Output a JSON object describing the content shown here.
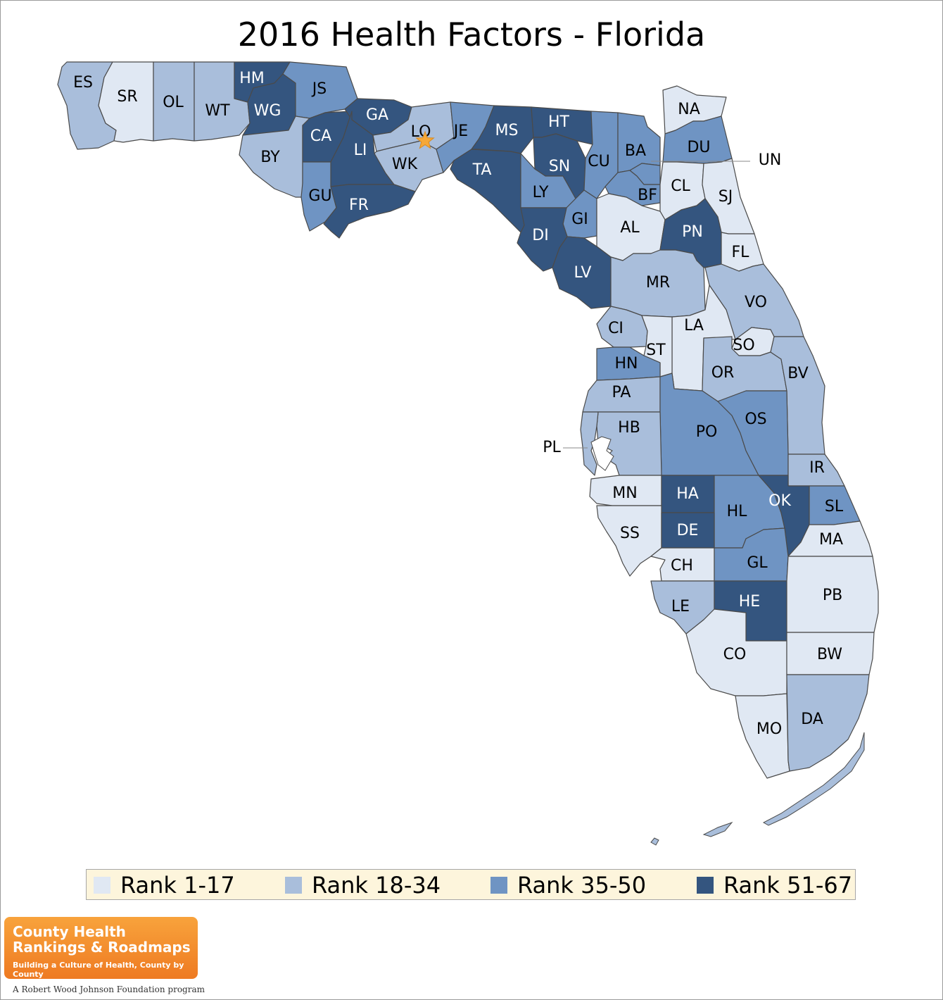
{
  "title": "2016 Health Factors - Florida",
  "colors": {
    "rank_1_17": "#e0e8f3",
    "rank_18_34": "#a9bedb",
    "rank_35_50": "#6f94c3",
    "rank_51_67": "#34557f",
    "outline": "#4a4a4a",
    "legend_bg": "#fdf5dc",
    "star": "#f6a838"
  },
  "legend": [
    {
      "label": "Rank 1-17",
      "tier": 1
    },
    {
      "label": "Rank 18-34",
      "tier": 2
    },
    {
      "label": "Rank 35-50",
      "tier": 3
    },
    {
      "label": "Rank 51-67",
      "tier": 4
    }
  ],
  "counties": [
    {
      "code": "ES",
      "tier": 2
    },
    {
      "code": "SR",
      "tier": 1
    },
    {
      "code": "OL",
      "tier": 2
    },
    {
      "code": "WT",
      "tier": 2
    },
    {
      "code": "HM",
      "tier": 4
    },
    {
      "code": "WG",
      "tier": 4
    },
    {
      "code": "JS",
      "tier": 3
    },
    {
      "code": "BY",
      "tier": 2
    },
    {
      "code": "CA",
      "tier": 4
    },
    {
      "code": "GA",
      "tier": 4
    },
    {
      "code": "LI",
      "tier": 4
    },
    {
      "code": "LO",
      "tier": 2
    },
    {
      "code": "WK",
      "tier": 2
    },
    {
      "code": "GU",
      "tier": 3
    },
    {
      "code": "FR",
      "tier": 4
    },
    {
      "code": "JE",
      "tier": 3
    },
    {
      "code": "MS",
      "tier": 4
    },
    {
      "code": "HT",
      "tier": 4
    },
    {
      "code": "TA",
      "tier": 4
    },
    {
      "code": "SN",
      "tier": 4
    },
    {
      "code": "LY",
      "tier": 3
    },
    {
      "code": "CU",
      "tier": 3
    },
    {
      "code": "BA",
      "tier": 3
    },
    {
      "code": "NA",
      "tier": 1
    },
    {
      "code": "DU",
      "tier": 3
    },
    {
      "code": "UN",
      "tier": 3
    },
    {
      "code": "BF",
      "tier": 3
    },
    {
      "code": "CL",
      "tier": 1
    },
    {
      "code": "SJ",
      "tier": 1
    },
    {
      "code": "GI",
      "tier": 3
    },
    {
      "code": "DI",
      "tier": 4
    },
    {
      "code": "AL",
      "tier": 1
    },
    {
      "code": "PN",
      "tier": 4
    },
    {
      "code": "FL",
      "tier": 1
    },
    {
      "code": "LV",
      "tier": 4
    },
    {
      "code": "MR",
      "tier": 2
    },
    {
      "code": "VO",
      "tier": 2
    },
    {
      "code": "CI",
      "tier": 2
    },
    {
      "code": "LA",
      "tier": 1
    },
    {
      "code": "ST",
      "tier": 1
    },
    {
      "code": "SO",
      "tier": 1
    },
    {
      "code": "HN",
      "tier": 3
    },
    {
      "code": "OR",
      "tier": 2
    },
    {
      "code": "BV",
      "tier": 2
    },
    {
      "code": "PA",
      "tier": 2
    },
    {
      "code": "PO",
      "tier": 3
    },
    {
      "code": "OS",
      "tier": 3
    },
    {
      "code": "HB",
      "tier": 2
    },
    {
      "code": "PL",
      "tier": 2
    },
    {
      "code": "IR",
      "tier": 2
    },
    {
      "code": "MN",
      "tier": 1
    },
    {
      "code": "HA",
      "tier": 4
    },
    {
      "code": "HL",
      "tier": 3
    },
    {
      "code": "OK",
      "tier": 4
    },
    {
      "code": "SL",
      "tier": 3
    },
    {
      "code": "SS",
      "tier": 1
    },
    {
      "code": "DE",
      "tier": 4
    },
    {
      "code": "MA",
      "tier": 1
    },
    {
      "code": "CH",
      "tier": 1
    },
    {
      "code": "GL",
      "tier": 3
    },
    {
      "code": "LE",
      "tier": 2
    },
    {
      "code": "HE",
      "tier": 4
    },
    {
      "code": "PB",
      "tier": 1
    },
    {
      "code": "CO",
      "tier": 1
    },
    {
      "code": "BW",
      "tier": 1
    },
    {
      "code": "MO",
      "tier": 1
    },
    {
      "code": "DA",
      "tier": 2
    }
  ],
  "highlight": {
    "county": "LO",
    "icon": "star-icon"
  },
  "logo": {
    "line1": "County Health",
    "line2": "Rankings & Roadmaps",
    "tagline": "Building a Culture of Health, County by County"
  },
  "footer": "A Robert Wood Johnson Foundation program"
}
